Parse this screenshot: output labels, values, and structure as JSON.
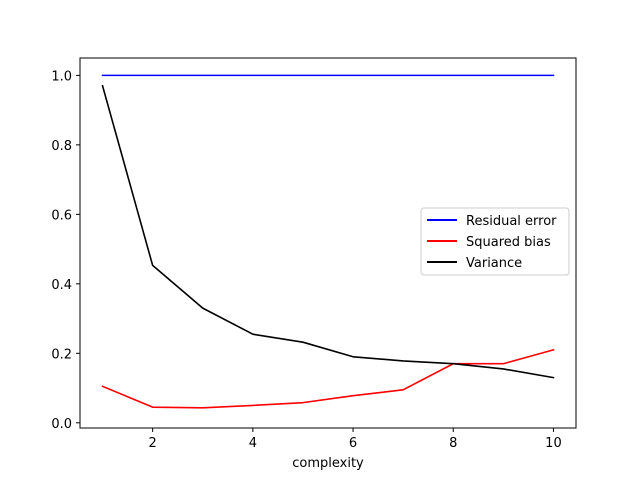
{
  "chart_data": {
    "type": "line",
    "title": "",
    "xlabel": "complexity",
    "ylabel": "",
    "x": [
      1,
      2,
      3,
      4,
      5,
      6,
      7,
      8,
      9,
      10
    ],
    "xlim": [
      0.55,
      10.45
    ],
    "ylim": [
      -0.015,
      1.05
    ],
    "xticks": [
      2,
      4,
      6,
      8,
      10
    ],
    "yticks": [
      0.0,
      0.2,
      0.4,
      0.6,
      0.8,
      1.0
    ],
    "xtick_labels": [
      "2",
      "4",
      "6",
      "8",
      "10"
    ],
    "ytick_labels": [
      "0.0",
      "0.2",
      "0.4",
      "0.6",
      "0.8",
      "1.0"
    ],
    "grid": false,
    "legend_position": "center-right",
    "series": [
      {
        "name": "Residual error",
        "color": "#0000ff",
        "values": [
          1.0,
          1.0,
          1.0,
          1.0,
          1.0,
          1.0,
          1.0,
          1.0,
          1.0,
          1.0
        ]
      },
      {
        "name": "Squared bias",
        "color": "#ff0000",
        "values": [
          0.105,
          0.045,
          0.043,
          0.05,
          0.058,
          0.078,
          0.095,
          0.17,
          0.17,
          0.21
        ]
      },
      {
        "name": "Variance",
        "color": "#000000",
        "values": [
          0.97,
          0.453,
          0.33,
          0.255,
          0.232,
          0.19,
          0.178,
          0.17,
          0.155,
          0.13
        ]
      }
    ]
  }
}
